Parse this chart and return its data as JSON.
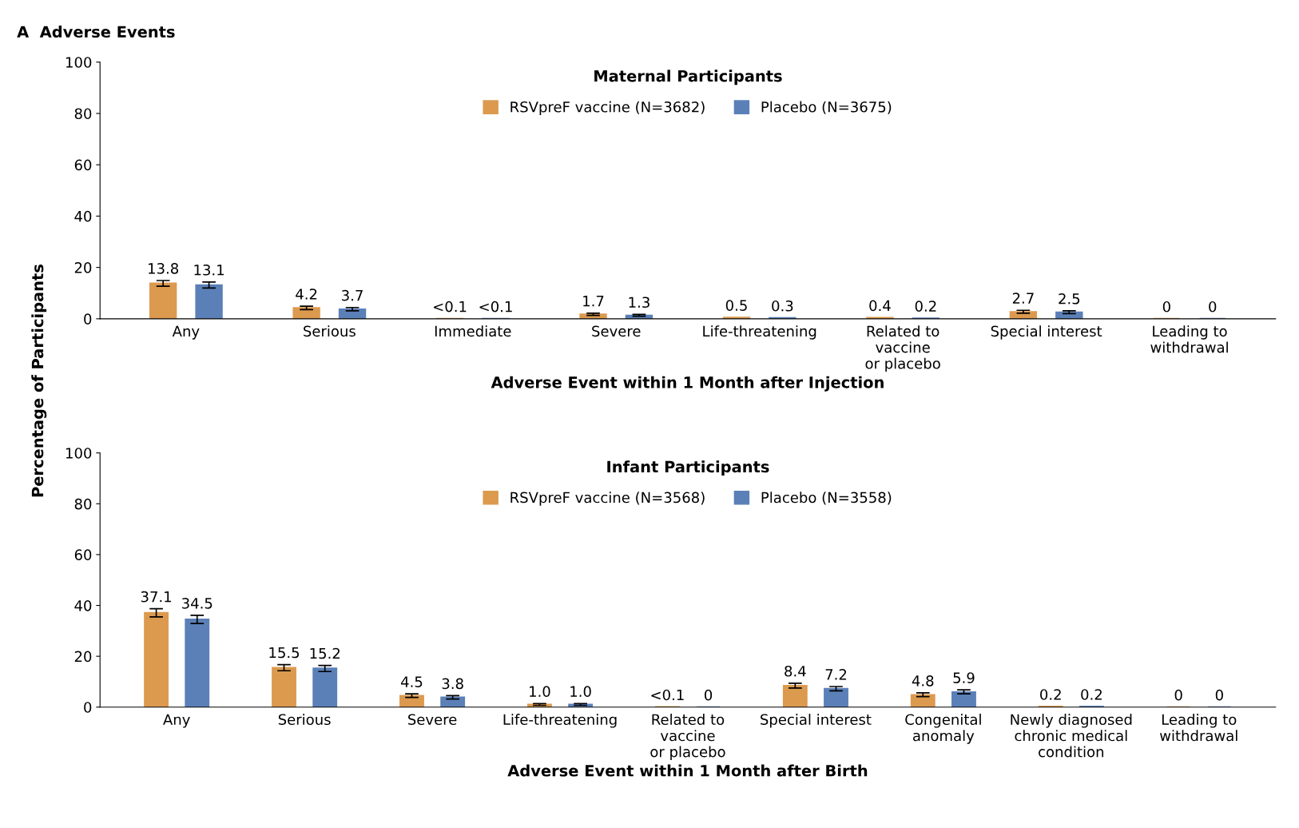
{
  "chart_data": [
    {
      "type": "bar",
      "title": "Maternal Participants",
      "annotations": [
        "A  Adverse Events"
      ],
      "ylabel": "Percentage of Participants",
      "xlabel": "Adverse Event within 1 Month after Injection",
      "categories": [
        "Any",
        "Serious",
        "Immediate",
        "Severe",
        "Life-threatening",
        "Related to\nvaccine\nor placebo",
        "Special interest",
        "Leading to\nwithdrawal"
      ],
      "ylim": [
        0,
        100
      ],
      "yticks": [
        0,
        20,
        40,
        60,
        80,
        100
      ],
      "legend": "top",
      "series": [
        {
          "name": "RSVpreF vaccine (N=3682)",
          "color": "#dc9a4f",
          "values": [
            13.8,
            4.2,
            0.05,
            1.7,
            0.5,
            0.4,
            2.7,
            0
          ],
          "value_labels": [
            "13.8",
            "4.2",
            "<0.1",
            "1.7",
            "0.5",
            "0.4",
            "2.7",
            "0"
          ],
          "errors": [
            [
              12.7,
              14.9
            ],
            [
              3.6,
              4.9
            ],
            null,
            [
              1.3,
              2.2
            ],
            null,
            null,
            [
              2.2,
              3.3
            ],
            null
          ]
        },
        {
          "name": "Placebo (N=3675)",
          "color": "#5b80b8",
          "values": [
            13.1,
            3.7,
            0.05,
            1.3,
            0.3,
            0.2,
            2.5,
            0
          ],
          "value_labels": [
            "13.1",
            "3.7",
            "<0.1",
            "1.3",
            "0.3",
            "0.2",
            "2.5",
            "0"
          ],
          "errors": [
            [
              12.0,
              14.3
            ],
            [
              3.1,
              4.4
            ],
            null,
            [
              1.0,
              1.7
            ],
            null,
            null,
            [
              2.0,
              3.1
            ],
            null
          ]
        }
      ]
    },
    {
      "type": "bar",
      "title": "Infant Participants",
      "xlabel": "Adverse Event within 1 Month after Birth",
      "categories": [
        "Any",
        "Serious",
        "Severe",
        "Life-threatening",
        "Related to\nvaccine\nor placebo",
        "Special interest",
        "Congenital\nanomaly",
        "Newly diagnosed\nchronic medical\ncondition",
        "Leading to\nwithdrawal"
      ],
      "ylim": [
        0,
        100
      ],
      "yticks": [
        0,
        20,
        40,
        60,
        80,
        100
      ],
      "legend": "top",
      "series": [
        {
          "name": "RSVpreF vaccine (N=3568)",
          "color": "#dc9a4f",
          "values": [
            37.1,
            15.5,
            4.5,
            1.0,
            0.05,
            8.4,
            4.8,
            0.2,
            0
          ],
          "value_labels": [
            "37.1",
            "15.5",
            "4.5",
            "1.0",
            "<0.1",
            "8.4",
            "4.8",
            "0.2",
            "0"
          ],
          "errors": [
            [
              35.5,
              38.7
            ],
            [
              14.3,
              16.7
            ],
            [
              3.8,
              5.2
            ],
            [
              0.7,
              1.4
            ],
            null,
            [
              7.5,
              9.4
            ],
            [
              4.1,
              5.6
            ],
            null,
            null
          ]
        },
        {
          "name": "Placebo (N=3558)",
          "color": "#5b80b8",
          "values": [
            34.5,
            15.2,
            3.8,
            1.0,
            0,
            7.2,
            5.9,
            0.2,
            0
          ],
          "value_labels": [
            "34.5",
            "15.2",
            "3.8",
            "1.0",
            "0",
            "7.2",
            "5.9",
            "0.2",
            "0"
          ],
          "errors": [
            [
              32.9,
              36.1
            ],
            [
              14.0,
              16.4
            ],
            [
              3.2,
              4.5
            ],
            [
              0.7,
              1.4
            ],
            null,
            [
              6.4,
              8.1
            ],
            [
              5.2,
              6.8
            ],
            null,
            null
          ]
        }
      ]
    }
  ]
}
